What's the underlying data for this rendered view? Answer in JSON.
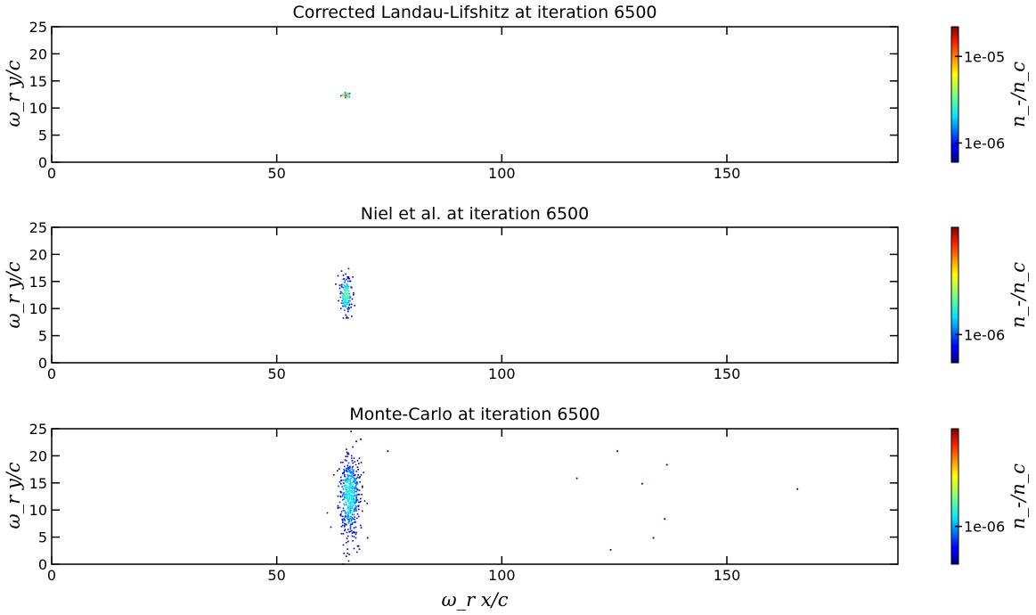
{
  "chart_data": [
    {
      "type": "heatmap",
      "title": "Corrected Landau-Lifshitz at iteration 6500",
      "xlabel": "",
      "ylabel": "ω_r y/c",
      "xlim": [
        0,
        188
      ],
      "ylim": [
        0,
        25
      ],
      "xticks": [
        "0",
        "50",
        "100",
        "150"
      ],
      "yticks": [
        "0",
        "5",
        "10",
        "15",
        "20",
        "25"
      ],
      "colorbar": {
        "label": "n_-/n_c",
        "scale": "log",
        "range": [
          6e-07,
          2.2e-05
        ],
        "ticks": [
          "1e-06",
          "1e-05"
        ]
      },
      "blobs": [
        {
          "x_center": 65.3,
          "y_center": 12.5,
          "x_halfwidth": 1.0,
          "y_halfwidth": 0.4,
          "peak": 0.95,
          "count": 40
        }
      ],
      "scatter": []
    },
    {
      "type": "heatmap",
      "title": "Niel et al. at iteration 6500",
      "xlabel": "",
      "ylabel": "ω_r y/c",
      "xlim": [
        0,
        188
      ],
      "ylim": [
        0,
        25
      ],
      "xticks": [
        "0",
        "50",
        "100",
        "150"
      ],
      "yticks": [
        "0",
        "5",
        "10",
        "15",
        "20",
        "25"
      ],
      "colorbar": {
        "label": "n_-/n_c",
        "scale": "log",
        "range": [
          6e-07,
          7e-06
        ],
        "ticks": [
          "1e-06"
        ]
      },
      "blobs": [
        {
          "x_center": 65.2,
          "y_center": 12.6,
          "x_halfwidth": 1.2,
          "y_halfwidth": 3.5,
          "peak": 0.55,
          "count": 170
        }
      ],
      "scatter": []
    },
    {
      "type": "heatmap",
      "title": "Monte-Carlo at iteration 6500",
      "xlabel": "ω_r x/c",
      "ylabel": "ω_r y/c",
      "xlim": [
        0,
        188
      ],
      "ylim": [
        0,
        25
      ],
      "xticks": [
        "0",
        "50",
        "100",
        "150"
      ],
      "yticks": [
        "0",
        "5",
        "10",
        "15",
        "20",
        "25"
      ],
      "colorbar": {
        "label": "n_-/n_c",
        "scale": "log",
        "range": [
          5e-07,
          6e-06
        ],
        "ticks": [
          "1e-06"
        ]
      },
      "blobs": [
        {
          "x_center": 66.0,
          "y_center": 12.8,
          "x_halfwidth": 2.2,
          "y_halfwidth": 7.5,
          "peak": 0.45,
          "count": 520
        }
      ],
      "scatter": [
        [
          68.5,
          23.2
        ],
        [
          67.5,
          22.8
        ],
        [
          74.5,
          21.0
        ],
        [
          125.5,
          21.0
        ],
        [
          136.5,
          18.5
        ],
        [
          116.5,
          16.0
        ],
        [
          131.0,
          15.0
        ],
        [
          165.5,
          14.0
        ],
        [
          136.0,
          8.5
        ],
        [
          70.0,
          5.0
        ],
        [
          133.5,
          5.0
        ],
        [
          68.0,
          3.5
        ],
        [
          124.0,
          2.8
        ]
      ]
    }
  ]
}
